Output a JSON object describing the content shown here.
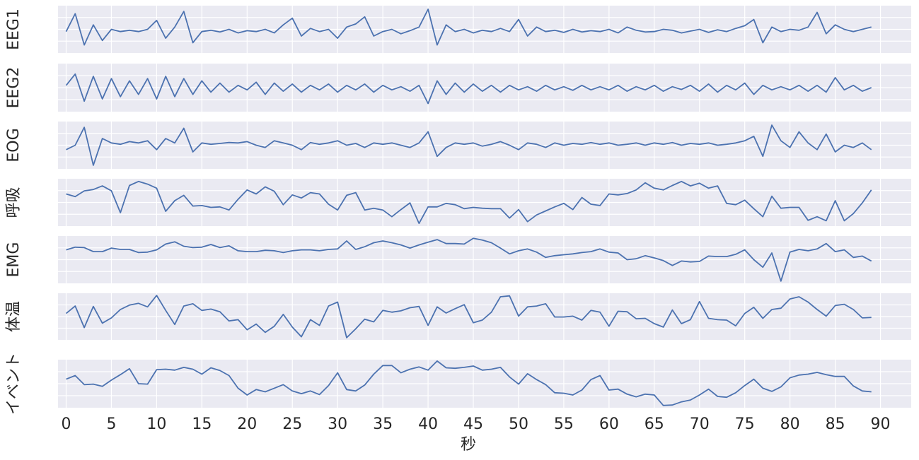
{
  "chart_data": {
    "type": "line",
    "subplots": true,
    "xlabel": "秒",
    "x": [
      0,
      1,
      2,
      3,
      4,
      5,
      6,
      7,
      8,
      9,
      10,
      11,
      12,
      13,
      14,
      15,
      16,
      17,
      18,
      19,
      20,
      21,
      22,
      23,
      24,
      25,
      26,
      27,
      28,
      29,
      30,
      31,
      32,
      33,
      34,
      35,
      36,
      37,
      38,
      39,
      40,
      41,
      42,
      43,
      44,
      45,
      46,
      47,
      48,
      49,
      50,
      51,
      52,
      53,
      54,
      55,
      56,
      57,
      58,
      59,
      60,
      61,
      62,
      63,
      64,
      65,
      66,
      67,
      68,
      69,
      70,
      71,
      72,
      73,
      74,
      75,
      76,
      77,
      78,
      79,
      80,
      81,
      82,
      83,
      84,
      85,
      86,
      87,
      88,
      89
    ],
    "xlim": [
      -0.9,
      93.4
    ],
    "xticks": [
      0,
      5,
      10,
      15,
      20,
      25,
      30,
      35,
      40,
      45,
      50,
      55,
      60,
      65,
      70,
      75,
      80,
      85,
      90
    ],
    "ylim": [
      -0.03,
      1.03
    ],
    "grid": true,
    "series": [
      {
        "name": "EEG1",
        "color": "#4c72b0",
        "values": [
          0.45,
          0.85,
          0.15,
          0.6,
          0.25,
          0.5,
          0.45,
          0.48,
          0.45,
          0.5,
          0.7,
          0.3,
          0.55,
          0.9,
          0.2,
          0.45,
          0.48,
          0.44,
          0.5,
          0.42,
          0.47,
          0.45,
          0.5,
          0.42,
          0.6,
          0.75,
          0.35,
          0.52,
          0.45,
          0.5,
          0.3,
          0.55,
          0.62,
          0.78,
          0.35,
          0.45,
          0.5,
          0.4,
          0.47,
          0.55,
          0.95,
          0.15,
          0.6,
          0.45,
          0.5,
          0.42,
          0.48,
          0.45,
          0.52,
          0.45,
          0.72,
          0.35,
          0.55,
          0.45,
          0.48,
          0.43,
          0.5,
          0.44,
          0.47,
          0.45,
          0.5,
          0.42,
          0.55,
          0.48,
          0.44,
          0.45,
          0.5,
          0.48,
          0.42,
          0.46,
          0.5,
          0.43,
          0.49,
          0.45,
          0.52,
          0.58,
          0.72,
          0.2,
          0.55,
          0.45,
          0.5,
          0.48,
          0.55,
          0.88,
          0.4,
          0.6,
          0.5,
          0.45,
          0.5,
          0.55
        ]
      },
      {
        "name": "EEG2",
        "color": "#4c72b0",
        "values": [
          0.55,
          0.8,
          0.2,
          0.75,
          0.25,
          0.7,
          0.3,
          0.65,
          0.35,
          0.7,
          0.25,
          0.75,
          0.3,
          0.7,
          0.35,
          0.65,
          0.4,
          0.6,
          0.4,
          0.55,
          0.45,
          0.62,
          0.35,
          0.6,
          0.42,
          0.58,
          0.4,
          0.55,
          0.45,
          0.58,
          0.4,
          0.55,
          0.45,
          0.58,
          0.4,
          0.55,
          0.45,
          0.52,
          0.42,
          0.55,
          0.15,
          0.65,
          0.35,
          0.6,
          0.4,
          0.58,
          0.42,
          0.55,
          0.4,
          0.55,
          0.45,
          0.52,
          0.42,
          0.55,
          0.45,
          0.52,
          0.44,
          0.55,
          0.45,
          0.52,
          0.45,
          0.55,
          0.42,
          0.52,
          0.45,
          0.55,
          0.42,
          0.52,
          0.46,
          0.55,
          0.42,
          0.58,
          0.4,
          0.55,
          0.45,
          0.6,
          0.35,
          0.55,
          0.45,
          0.52,
          0.45,
          0.55,
          0.42,
          0.55,
          0.4,
          0.72,
          0.45,
          0.55,
          0.42,
          0.5
        ]
      },
      {
        "name": "EOG",
        "color": "#4c72b0",
        "values": [
          0.4,
          0.5,
          0.9,
          0.05,
          0.65,
          0.55,
          0.52,
          0.58,
          0.55,
          0.6,
          0.4,
          0.65,
          0.55,
          0.88,
          0.35,
          0.55,
          0.52,
          0.54,
          0.56,
          0.55,
          0.58,
          0.5,
          0.45,
          0.6,
          0.55,
          0.5,
          0.4,
          0.56,
          0.52,
          0.55,
          0.6,
          0.5,
          0.54,
          0.45,
          0.55,
          0.52,
          0.55,
          0.5,
          0.45,
          0.55,
          0.8,
          0.25,
          0.45,
          0.55,
          0.52,
          0.55,
          0.48,
          0.52,
          0.58,
          0.5,
          0.4,
          0.55,
          0.52,
          0.45,
          0.55,
          0.5,
          0.54,
          0.52,
          0.56,
          0.52,
          0.55,
          0.5,
          0.52,
          0.55,
          0.5,
          0.55,
          0.52,
          0.56,
          0.5,
          0.54,
          0.52,
          0.55,
          0.5,
          0.52,
          0.55,
          0.6,
          0.7,
          0.25,
          0.95,
          0.6,
          0.45,
          0.8,
          0.55,
          0.4,
          0.75,
          0.35,
          0.5,
          0.45,
          0.55,
          0.4
        ]
      },
      {
        "name": "呼吸",
        "color": "#4c72b0",
        "values": [
          0.69,
          0.63,
          0.76,
          0.79,
          0.87,
          0.76,
          0.27,
          0.88,
          0.97,
          0.91,
          0.82,
          0.3,
          0.54,
          0.66,
          0.42,
          0.43,
          0.39,
          0.4,
          0.33,
          0.57,
          0.78,
          0.69,
          0.85,
          0.75,
          0.45,
          0.67,
          0.6,
          0.72,
          0.69,
          0.46,
          0.33,
          0.66,
          0.72,
          0.33,
          0.37,
          0.33,
          0.18,
          0.34,
          0.49,
          0.03,
          0.4,
          0.4,
          0.48,
          0.45,
          0.36,
          0.39,
          0.37,
          0.36,
          0.36,
          0.15,
          0.34,
          0.07,
          0.22,
          0.31,
          0.4,
          0.48,
          0.34,
          0.61,
          0.46,
          0.43,
          0.69,
          0.67,
          0.7,
          0.78,
          0.94,
          0.82,
          0.78,
          0.88,
          0.97,
          0.87,
          0.93,
          0.82,
          0.87,
          0.48,
          0.45,
          0.55,
          0.36,
          0.18,
          0.64,
          0.37,
          0.39,
          0.39,
          0.1,
          0.18,
          0.09,
          0.54,
          0.09,
          0.25,
          0.49,
          0.78
        ]
      },
      {
        "name": "EMG",
        "color": "#4c72b0",
        "values": [
          0.72,
          0.78,
          0.77,
          0.68,
          0.68,
          0.76,
          0.73,
          0.73,
          0.66,
          0.67,
          0.72,
          0.85,
          0.9,
          0.8,
          0.77,
          0.78,
          0.84,
          0.77,
          0.81,
          0.7,
          0.68,
          0.68,
          0.71,
          0.7,
          0.66,
          0.7,
          0.72,
          0.72,
          0.7,
          0.73,
          0.74,
          0.92,
          0.73,
          0.79,
          0.88,
          0.92,
          0.88,
          0.83,
          0.76,
          0.83,
          0.89,
          0.95,
          0.86,
          0.86,
          0.85,
          0.98,
          0.94,
          0.88,
          0.76,
          0.63,
          0.7,
          0.74,
          0.67,
          0.55,
          0.59,
          0.61,
          0.63,
          0.66,
          0.68,
          0.74,
          0.67,
          0.65,
          0.5,
          0.52,
          0.59,
          0.54,
          0.48,
          0.37,
          0.47,
          0.45,
          0.46,
          0.58,
          0.57,
          0.57,
          0.62,
          0.72,
          0.5,
          0.33,
          0.65,
          0.02,
          0.67,
          0.73,
          0.7,
          0.74,
          0.86,
          0.68,
          0.72,
          0.55,
          0.58,
          0.47
        ]
      },
      {
        "name": "体温",
        "color": "#4c72b0",
        "values": [
          0.57,
          0.74,
          0.25,
          0.73,
          0.35,
          0.47,
          0.66,
          0.76,
          0.8,
          0.72,
          0.98,
          0.64,
          0.32,
          0.74,
          0.79,
          0.64,
          0.67,
          0.61,
          0.4,
          0.43,
          0.2,
          0.33,
          0.14,
          0.28,
          0.55,
          0.26,
          0.04,
          0.43,
          0.3,
          0.74,
          0.83,
          0.02,
          0.22,
          0.44,
          0.38,
          0.64,
          0.6,
          0.63,
          0.7,
          0.73,
          0.3,
          0.72,
          0.58,
          0.68,
          0.77,
          0.36,
          0.42,
          0.6,
          0.95,
          0.97,
          0.51,
          0.72,
          0.74,
          0.79,
          0.49,
          0.49,
          0.51,
          0.42,
          0.64,
          0.6,
          0.28,
          0.62,
          0.61,
          0.45,
          0.46,
          0.34,
          0.26,
          0.65,
          0.34,
          0.43,
          0.84,
          0.46,
          0.43,
          0.42,
          0.29,
          0.57,
          0.71,
          0.46,
          0.66,
          0.69,
          0.9,
          0.95,
          0.83,
          0.66,
          0.51,
          0.75,
          0.78,
          0.66,
          0.47,
          0.48
        ]
      },
      {
        "name": "イベント",
        "color": "#4c72b0",
        "values": [
          0.6,
          0.68,
          0.48,
          0.49,
          0.44,
          0.58,
          0.7,
          0.83,
          0.5,
          0.49,
          0.81,
          0.82,
          0.8,
          0.86,
          0.82,
          0.71,
          0.85,
          0.79,
          0.68,
          0.4,
          0.25,
          0.37,
          0.32,
          0.4,
          0.48,
          0.34,
          0.28,
          0.34,
          0.26,
          0.46,
          0.74,
          0.37,
          0.34,
          0.47,
          0.71,
          0.9,
          0.9,
          0.74,
          0.82,
          0.87,
          0.8,
          1.0,
          0.85,
          0.84,
          0.86,
          0.89,
          0.8,
          0.82,
          0.86,
          0.65,
          0.49,
          0.72,
          0.59,
          0.48,
          0.3,
          0.29,
          0.25,
          0.36,
          0.59,
          0.68,
          0.36,
          0.38,
          0.27,
          0.21,
          0.27,
          0.25,
          0.02,
          0.03,
          0.1,
          0.14,
          0.25,
          0.38,
          0.22,
          0.2,
          0.3,
          0.46,
          0.6,
          0.4,
          0.33,
          0.43,
          0.63,
          0.69,
          0.71,
          0.75,
          0.7,
          0.66,
          0.66,
          0.45,
          0.34,
          0.32
        ]
      }
    ]
  }
}
